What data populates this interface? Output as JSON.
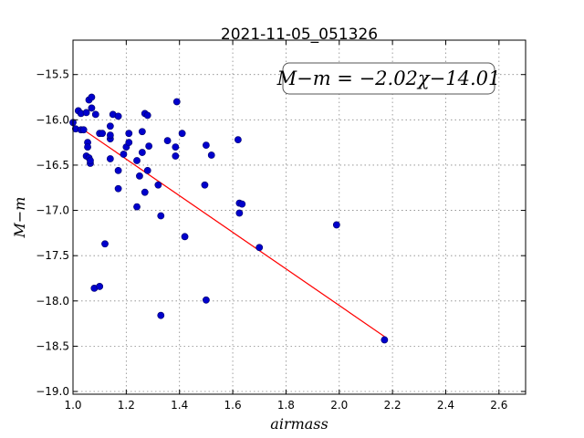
{
  "chart_data": {
    "type": "scatter",
    "title": "2021-11-05_051326",
    "xlabel": "airmass",
    "ylabel": "M−m",
    "xlim": [
      1.0,
      2.7
    ],
    "ylim": [
      -19.03,
      -15.12
    ],
    "y_inverted": true,
    "grid": true,
    "x_ticks": [
      1.0,
      1.2,
      1.4,
      1.6,
      1.8,
      2.0,
      2.2,
      2.4,
      2.6
    ],
    "x_tick_labels": [
      "1.0",
      "1.2",
      "1.4",
      "1.6",
      "1.8",
      "2.0",
      "2.2",
      "2.4",
      "2.6"
    ],
    "y_ticks": [
      -15.5,
      -16.0,
      -16.5,
      -17.0,
      -17.5,
      -18.0,
      -18.5,
      -19.0
    ],
    "y_tick_labels": [
      "−15.5",
      "−16.0",
      "−16.5",
      "−17.0",
      "−17.5",
      "−18.0",
      "−18.5",
      "−19.0"
    ],
    "annotation": "M−m = −2.02χ−14.01",
    "marker_color": "#0000cc",
    "line_color": "#ff0000",
    "fit": {
      "slope": -2.02,
      "intercept": -14.01,
      "x_range": [
        1.03,
        2.17
      ]
    },
    "points": [
      [
        1.0,
        -16.03
      ],
      [
        1.01,
        -16.1
      ],
      [
        1.02,
        -15.9
      ],
      [
        1.03,
        -16.11
      ],
      [
        1.03,
        -15.93
      ],
      [
        1.04,
        -16.11
      ],
      [
        1.05,
        -16.4
      ],
      [
        1.05,
        -15.92
      ],
      [
        1.055,
        -16.25
      ],
      [
        1.055,
        -16.3
      ],
      [
        1.06,
        -15.78
      ],
      [
        1.06,
        -16.42
      ],
      [
        1.065,
        -16.48
      ],
      [
        1.065,
        -16.45
      ],
      [
        1.07,
        -15.75
      ],
      [
        1.07,
        -15.87
      ],
      [
        1.08,
        -17.86
      ],
      [
        1.085,
        -15.94
      ],
      [
        1.1,
        -16.15
      ],
      [
        1.1,
        -17.84
      ],
      [
        1.11,
        -16.15
      ],
      [
        1.12,
        -17.37
      ],
      [
        1.14,
        -16.07
      ],
      [
        1.14,
        -16.21
      ],
      [
        1.14,
        -16.17
      ],
      [
        1.14,
        -16.43
      ],
      [
        1.15,
        -15.94
      ],
      [
        1.17,
        -16.76
      ],
      [
        1.17,
        -15.96
      ],
      [
        1.17,
        -16.56
      ],
      [
        1.19,
        -16.38
      ],
      [
        1.2,
        -16.3
      ],
      [
        1.21,
        -16.25
      ],
      [
        1.21,
        -16.15
      ],
      [
        1.24,
        -16.45
      ],
      [
        1.24,
        -16.96
      ],
      [
        1.25,
        -16.62
      ],
      [
        1.26,
        -16.13
      ],
      [
        1.26,
        -16.36
      ],
      [
        1.27,
        -16.8
      ],
      [
        1.27,
        -15.93
      ],
      [
        1.28,
        -16.56
      ],
      [
        1.28,
        -15.95
      ],
      [
        1.285,
        -16.29
      ],
      [
        1.32,
        -16.72
      ],
      [
        1.33,
        -17.06
      ],
      [
        1.33,
        -18.16
      ],
      [
        1.355,
        -16.23
      ],
      [
        1.385,
        -16.3
      ],
      [
        1.385,
        -16.4
      ],
      [
        1.39,
        -15.8
      ],
      [
        1.41,
        -16.15
      ],
      [
        1.42,
        -17.29
      ],
      [
        1.495,
        -16.72
      ],
      [
        1.5,
        -16.28
      ],
      [
        1.5,
        -17.99
      ],
      [
        1.52,
        -16.39
      ],
      [
        1.62,
        -16.22
      ],
      [
        1.625,
        -17.03
      ],
      [
        1.625,
        -16.92
      ],
      [
        1.635,
        -16.93
      ],
      [
        1.7,
        -17.41
      ],
      [
        1.99,
        -17.16
      ],
      [
        2.17,
        -18.43
      ]
    ]
  }
}
